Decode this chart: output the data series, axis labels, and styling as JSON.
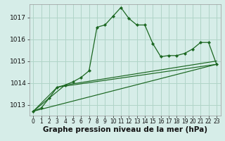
{
  "xlabel": "Graphe pression niveau de la mer (hPa)",
  "background_color": "#d6ede8",
  "grid_color": "#b0d4c8",
  "line_color": "#1a6620",
  "marker_color": "#1a6620",
  "ylim": [
    1012.5,
    1017.6
  ],
  "xlim": [
    -0.5,
    23.5
  ],
  "yticks": [
    1013,
    1014,
    1015,
    1016,
    1017
  ],
  "xticks": [
    0,
    1,
    2,
    3,
    4,
    5,
    6,
    7,
    8,
    9,
    10,
    11,
    12,
    13,
    14,
    15,
    16,
    17,
    18,
    19,
    20,
    21,
    22,
    23
  ],
  "series1_x": [
    0,
    1,
    2,
    3,
    4,
    5,
    6,
    7,
    8,
    9,
    10,
    11,
    12,
    13,
    14,
    15,
    16,
    17,
    18,
    19,
    20,
    21,
    22,
    23
  ],
  "series1_y": [
    1012.7,
    1012.85,
    1013.3,
    1013.8,
    1013.9,
    1014.05,
    1014.25,
    1014.55,
    1016.55,
    1016.65,
    1017.05,
    1017.45,
    1016.95,
    1016.65,
    1016.65,
    1015.8,
    1015.2,
    1015.25,
    1015.25,
    1015.35,
    1015.55,
    1015.85,
    1015.85,
    1014.85
  ],
  "line2_x": [
    0,
    23
  ],
  "line2_y": [
    1012.7,
    1014.85
  ],
  "line3_x": [
    0,
    4,
    23
  ],
  "line3_y": [
    1012.7,
    1013.9,
    1015.0
  ],
  "line4_x": [
    0,
    3,
    23
  ],
  "line4_y": [
    1012.7,
    1013.8,
    1014.85
  ],
  "font_size_xlabel": 7.5,
  "font_size_yticks": 6.5,
  "font_size_xticks": 5.5
}
